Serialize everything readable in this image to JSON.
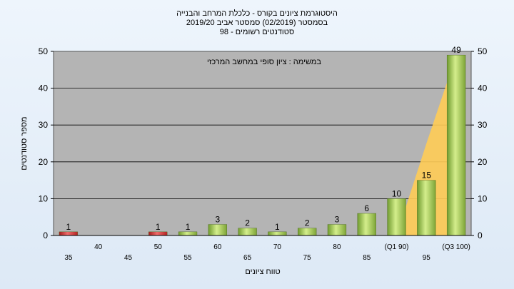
{
  "chart_data": {
    "type": "bar",
    "title_lines": [
      "היסטוגרמת ציונים בקורס - כלכלת המרחב והבנייה",
      "בסמסטר  (02/2019)  סמסטר אביב 2019/20",
      "סטודנטים רשומים - 98"
    ],
    "annotation": "במשימה : ציון סופי במחשב המרכזי",
    "xlabel": "טווח ציונים",
    "ylabel": "מספר סטודנטים",
    "ylim": [
      0,
      50
    ],
    "yticks": [
      0,
      10,
      20,
      30,
      40,
      50
    ],
    "categories": [
      "35",
      "40",
      "45",
      "50",
      "55",
      "60",
      "65",
      "70",
      "75",
      "80",
      "85",
      "(Q1 90)",
      "95",
      "(Q3 100)"
    ],
    "values": [
      1,
      0,
      0,
      1,
      1,
      3,
      2,
      1,
      2,
      3,
      6,
      10,
      15,
      49
    ],
    "value_labels": [
      "1",
      "",
      "",
      "1",
      "1",
      "3",
      "2",
      "1",
      "2",
      "3",
      "6",
      "10",
      "15",
      "49"
    ],
    "bar_colors": [
      "red",
      "red",
      "red",
      "red",
      "green",
      "green",
      "green",
      "green",
      "green",
      "green",
      "green",
      "green",
      "green",
      "green"
    ],
    "area_series": [
      0,
      0,
      0,
      0,
      0,
      0,
      0,
      0,
      0,
      0,
      0,
      0,
      25,
      49
    ],
    "colors": {
      "plot_bg": "#b4b4b4",
      "grid": "#000000",
      "bar_red": "#cc2a2a",
      "bar_green": "#9bc94f",
      "area": "#ffcc55"
    },
    "grid": true
  }
}
